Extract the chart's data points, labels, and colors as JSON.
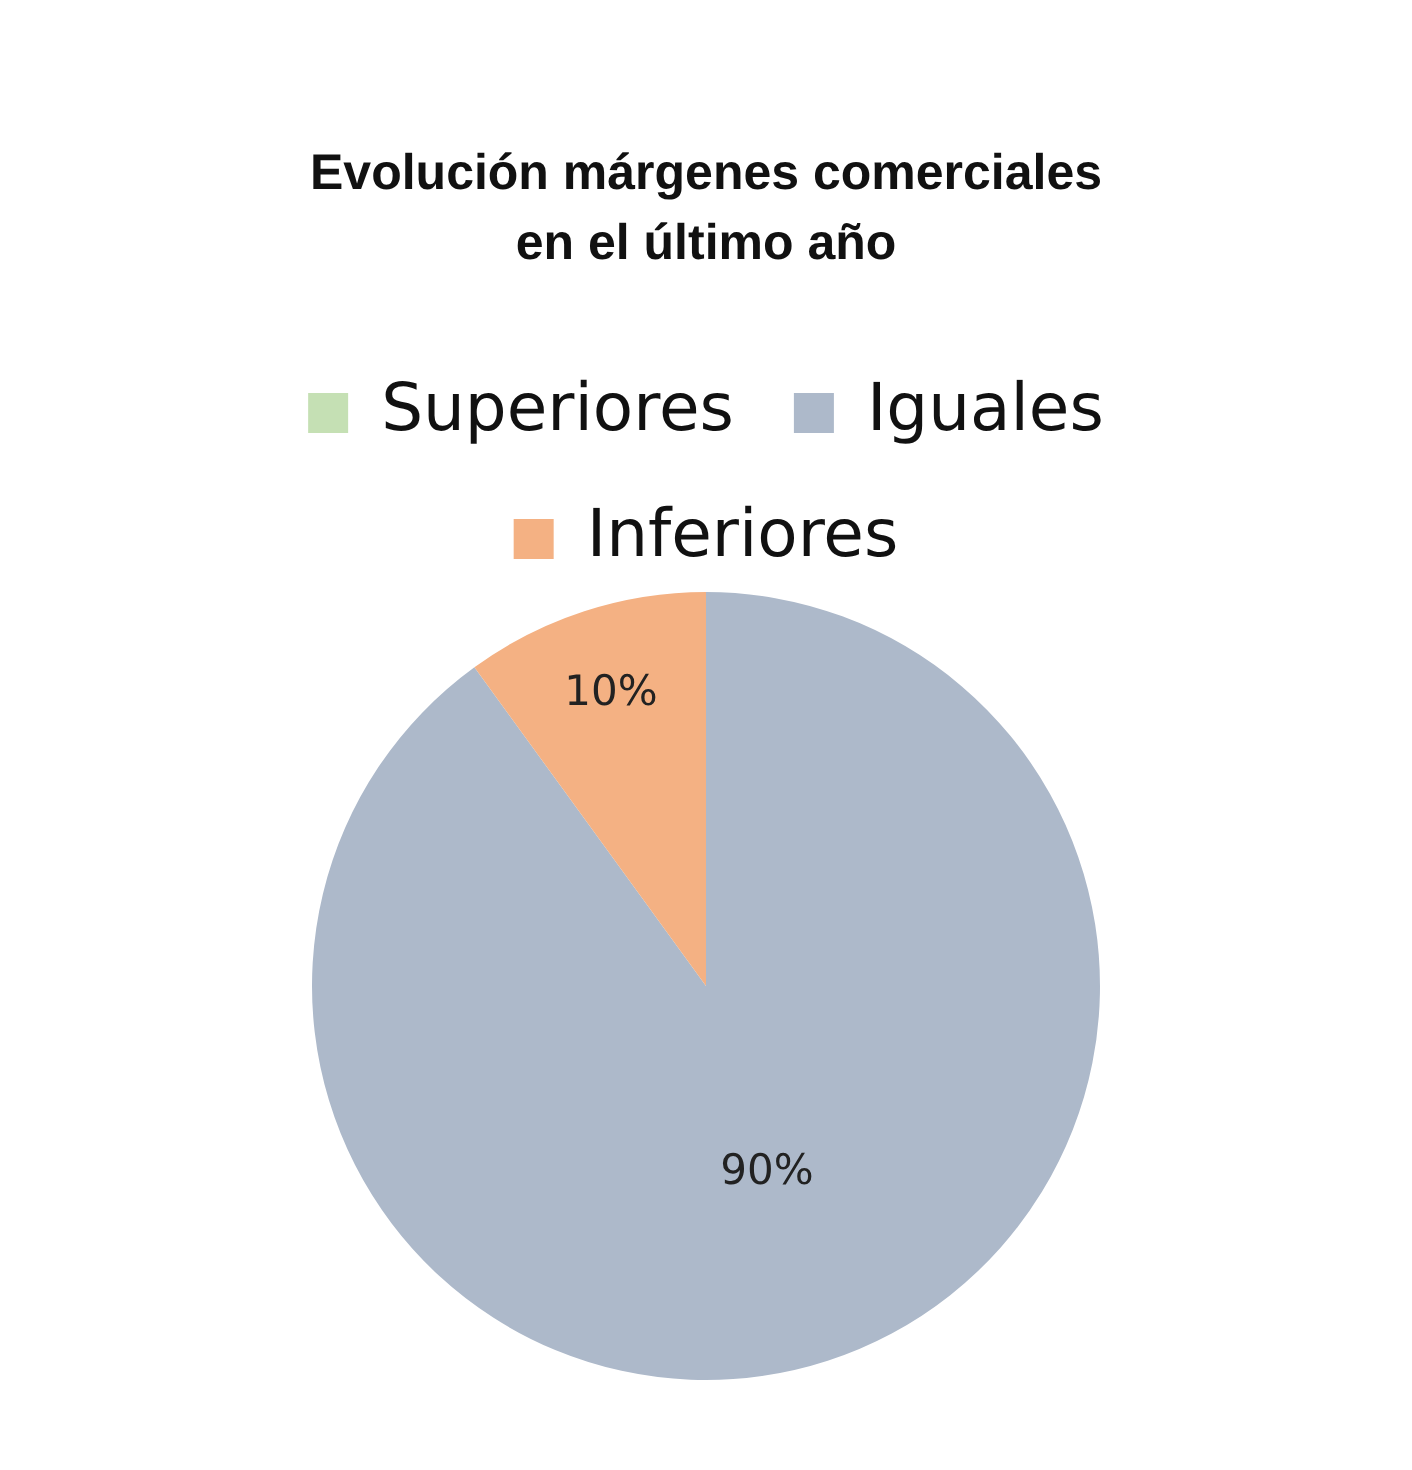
{
  "chart_data": {
    "type": "pie",
    "title": "Evolución márgenes comerciales\nen el último año",
    "categories": [
      "Superiores",
      "Iguales",
      "Inferiores"
    ],
    "values": [
      0,
      90,
      10
    ],
    "colors": [
      "#c5e0b4",
      "#adb9ca",
      "#f4b183"
    ],
    "value_labels": [
      null,
      "90%",
      "10%"
    ],
    "legend": "top"
  }
}
